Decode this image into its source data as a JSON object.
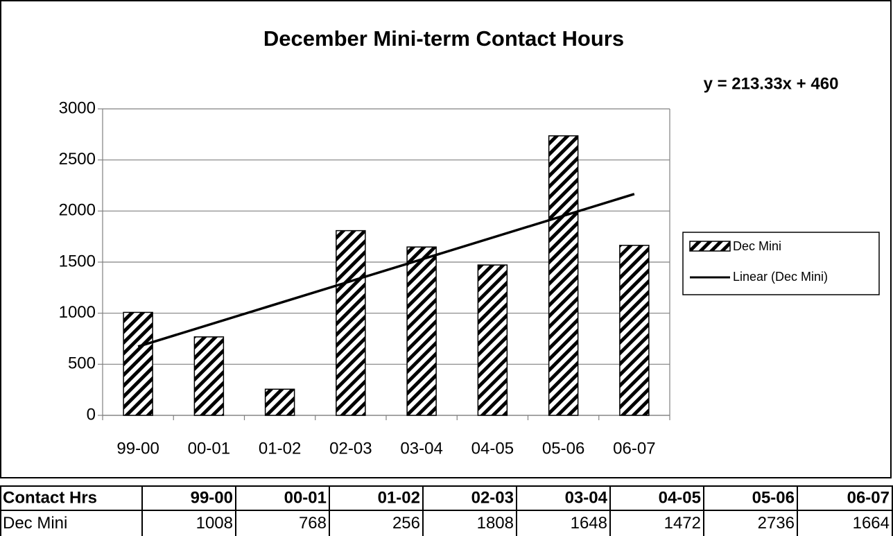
{
  "chart_data": {
    "type": "bar",
    "title": "December Mini-term Contact Hours",
    "categories": [
      "99-00",
      "00-01",
      "01-02",
      "02-03",
      "03-04",
      "04-05",
      "05-06",
      "06-07"
    ],
    "series": [
      {
        "name": "Dec Mini",
        "color": "#000000",
        "values": [
          1008,
          768,
          256,
          1808,
          1648,
          1472,
          2736,
          1664
        ]
      }
    ],
    "trendline": {
      "name": "Linear (Dec Mini)",
      "label": "y = 213.33x + 460",
      "slope": 213.33,
      "intercept": 460
    },
    "ylim": [
      0,
      3000
    ],
    "yticks": [
      0,
      500,
      1000,
      1500,
      2000,
      2500,
      3000
    ],
    "grid": true,
    "table_header": "Contact Hrs"
  }
}
